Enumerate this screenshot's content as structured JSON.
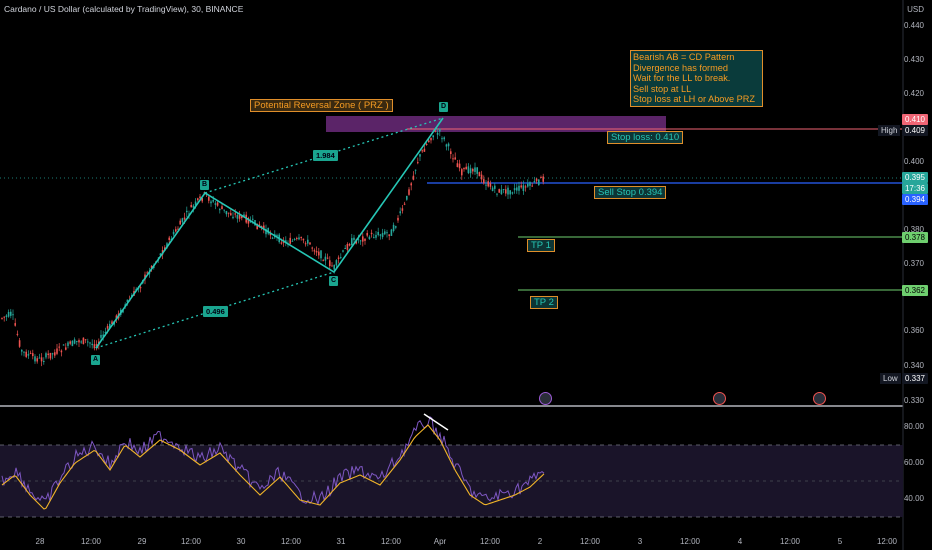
{
  "chart_title": "Cardano / US Dollar (calculated by TradingView), 30, BINANCE",
  "currency": "USD",
  "price_axis": [
    "0.440",
    "0.430",
    "0.420",
    "0.410",
    "0.400",
    "0.390",
    "0.380",
    "0.370",
    "0.360",
    "0.350",
    "0.340",
    "0.330"
  ],
  "price_tags": {
    "stop_loss": "0.410",
    "high_label": "High",
    "high_value": "0.409",
    "current": "0.395",
    "countdown": "17:36",
    "sell_stop": "0.394",
    "tp1": "0.378",
    "tp2": "0.362",
    "low_label": "Low",
    "low_value": "0.337"
  },
  "rsi_axis": [
    "80.00",
    "60.00",
    "40.00"
  ],
  "time_axis": [
    "28",
    "12:00",
    "29",
    "12:00",
    "30",
    "12:00",
    "31",
    "12:00",
    "Apr",
    "12:00",
    "2",
    "12:00",
    "3",
    "12:00",
    "4",
    "12:00",
    "5",
    "12:00"
  ],
  "annotations": {
    "prz": "Potential Reversal Zone ( PRZ )",
    "stop_loss": "Stop loss: 0.410",
    "sell_stop": "Sell Stop 0.394",
    "tp1": "TP 1",
    "tp2": "TP 2",
    "note_lines": [
      "Bearish AB = CD Pattern",
      "Divergence has formed",
      "Wait for the LL to break.",
      "Sell stop at LL",
      "Stop loss at LH or Above PRZ"
    ],
    "point_labels": [
      "A",
      "B",
      "C",
      "D"
    ],
    "ratio_bc": "1.984",
    "ratio_ab": "0.496"
  },
  "colors": {
    "background": "#000000",
    "candle_up": "#26a69a",
    "candle_down": "#ef5350",
    "pattern": "#26c6b5",
    "stop_line": "#f06575",
    "sell_line": "#2962ff",
    "tp_line": "#6fcf6f",
    "prz_fill": "#6b2a7a",
    "annotation_orange": "#f59b22",
    "rsi_line": "#7e57c2",
    "rsi_ma": "#f0b429"
  }
}
